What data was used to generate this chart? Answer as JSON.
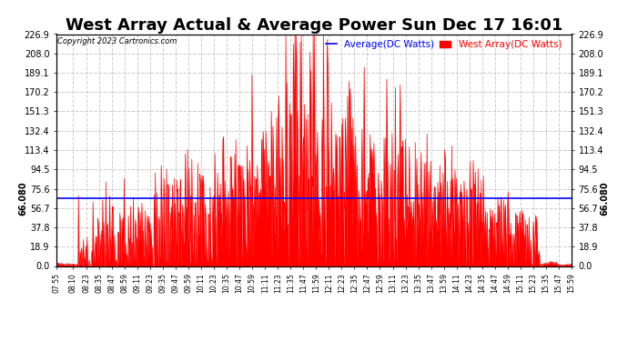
{
  "title": "West Array Actual & Average Power Sun Dec 17 16:01",
  "copyright": "Copyright 2023 Cartronics.com",
  "average_value": 66.08,
  "ymax": 226.9,
  "ymin": 0.0,
  "yticks": [
    0.0,
    18.9,
    37.8,
    56.7,
    75.6,
    94.5,
    113.4,
    132.4,
    151.3,
    170.2,
    189.1,
    208.0,
    226.9
  ],
  "avg_line_color": "blue",
  "area_color": "red",
  "background_color": "#ffffff",
  "plot_bg_color": "#ffffff",
  "grid_color": "#cccccc",
  "title_fontsize": 13,
  "legend_avg_label": "Average(DC Watts)",
  "legend_west_label": "West Array(DC Watts)",
  "time_labels": [
    "07:55",
    "08:10",
    "08:23",
    "08:35",
    "08:47",
    "08:59",
    "09:11",
    "09:23",
    "09:35",
    "09:47",
    "09:59",
    "10:11",
    "10:23",
    "10:35",
    "10:47",
    "10:59",
    "11:11",
    "11:23",
    "11:35",
    "11:47",
    "11:59",
    "12:11",
    "12:23",
    "12:35",
    "12:47",
    "12:59",
    "13:11",
    "13:23",
    "13:35",
    "13:47",
    "13:59",
    "14:11",
    "14:23",
    "14:35",
    "14:47",
    "14:59",
    "15:11",
    "15:23",
    "15:35",
    "15:47",
    "15:59"
  ]
}
